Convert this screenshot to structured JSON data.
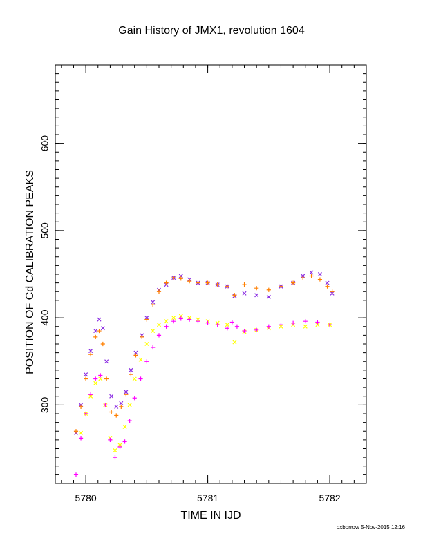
{
  "chart_data": {
    "type": "scatter",
    "title": "Gain History of JMX1, revolution 1604",
    "xlabel": "TIME IN IJD",
    "ylabel": "POSITION OF Cd CALIBRATION PEAKS",
    "xlim": [
      5779.75,
      5782.3
    ],
    "ylim": [
      210,
      690
    ],
    "x_ticks": [
      "5780",
      "5781",
      "5782"
    ],
    "y_ticks": [
      "300",
      "400",
      "500",
      "600"
    ],
    "grid": false,
    "series": [
      {
        "marker": "x",
        "color": "#8a2be2",
        "x": [
          5779.92,
          5779.96,
          5780.0,
          5780.04,
          5780.08,
          5780.11,
          5780.14,
          5780.17,
          5780.21,
          5780.25,
          5780.29,
          5780.33,
          5780.37,
          5780.41,
          5780.46,
          5780.5,
          5780.55,
          5780.6,
          5780.66,
          5780.72,
          5780.78,
          5780.85,
          5780.92,
          5781.0,
          5781.08,
          5781.16,
          5781.22,
          5781.3,
          5781.4,
          5781.5,
          5781.6,
          5781.7,
          5781.78,
          5781.85,
          5781.92,
          5781.98,
          5782.02
        ],
        "y": [
          268,
          300,
          335,
          362,
          385,
          398,
          388,
          350,
          310,
          298,
          302,
          315,
          340,
          360,
          380,
          400,
          418,
          432,
          438,
          446,
          448,
          444,
          440,
          440,
          438,
          436,
          425,
          428,
          426,
          424,
          436,
          440,
          448,
          452,
          450,
          440,
          428
        ]
      },
      {
        "marker": "+",
        "color": "#ff7f00",
        "x": [
          5779.92,
          5779.96,
          5780.0,
          5780.04,
          5780.08,
          5780.11,
          5780.14,
          5780.17,
          5780.21,
          5780.25,
          5780.29,
          5780.33,
          5780.37,
          5780.41,
          5780.46,
          5780.5,
          5780.55,
          5780.6,
          5780.66,
          5780.72,
          5780.78,
          5780.85,
          5780.92,
          5781.0,
          5781.08,
          5781.16,
          5781.22,
          5781.3,
          5781.4,
          5781.5,
          5781.6,
          5781.7,
          5781.78,
          5781.85,
          5781.92,
          5781.98,
          5782.02
        ],
        "y": [
          270,
          298,
          330,
          358,
          378,
          385,
          370,
          330,
          292,
          288,
          298,
          312,
          335,
          357,
          378,
          398,
          415,
          430,
          440,
          446,
          445,
          442,
          440,
          440,
          438,
          436,
          426,
          438,
          434,
          432,
          436,
          440,
          446,
          448,
          444,
          436,
          430
        ]
      },
      {
        "marker": "x",
        "color": "#ffff00",
        "x": [
          5779.96,
          5780.0,
          5780.04,
          5780.08,
          5780.12,
          5780.16,
          5780.2,
          5780.24,
          5780.28,
          5780.32,
          5780.36,
          5780.4,
          5780.45,
          5780.5,
          5780.55,
          5780.6,
          5780.66,
          5780.72,
          5780.78,
          5780.85,
          5780.92,
          5781.0,
          5781.08,
          5781.16,
          5781.22,
          5781.3,
          5781.4,
          5781.5,
          5781.6,
          5781.7,
          5781.8,
          5781.9,
          5782.0
        ],
        "y": [
          268,
          290,
          310,
          325,
          330,
          300,
          262,
          248,
          254,
          275,
          300,
          330,
          352,
          370,
          385,
          392,
          396,
          400,
          402,
          400,
          398,
          396,
          394,
          392,
          372,
          384,
          386,
          388,
          390,
          392,
          390,
          392,
          392
        ]
      },
      {
        "marker": "+",
        "color": "#ff00ff",
        "x": [
          5779.92,
          5779.96,
          5780.0,
          5780.04,
          5780.08,
          5780.12,
          5780.16,
          5780.2,
          5780.24,
          5780.28,
          5780.32,
          5780.36,
          5780.4,
          5780.45,
          5780.5,
          5780.55,
          5780.6,
          5780.66,
          5780.72,
          5780.78,
          5780.85,
          5780.92,
          5781.0,
          5781.08,
          5781.16,
          5781.2,
          5781.24,
          5781.3,
          5781.4,
          5781.5,
          5781.6,
          5781.7,
          5781.8,
          5781.9,
          5782.0
        ],
        "y": [
          220,
          262,
          290,
          312,
          330,
          334,
          300,
          260,
          240,
          252,
          258,
          282,
          308,
          330,
          350,
          366,
          380,
          390,
          396,
          399,
          398,
          396,
          394,
          392,
          388,
          395,
          390,
          385,
          386,
          390,
          392,
          394,
          396,
          395,
          392
        ]
      }
    ]
  },
  "footer": {
    "credit": "oxborrow  5-Nov-2015 12:16"
  }
}
